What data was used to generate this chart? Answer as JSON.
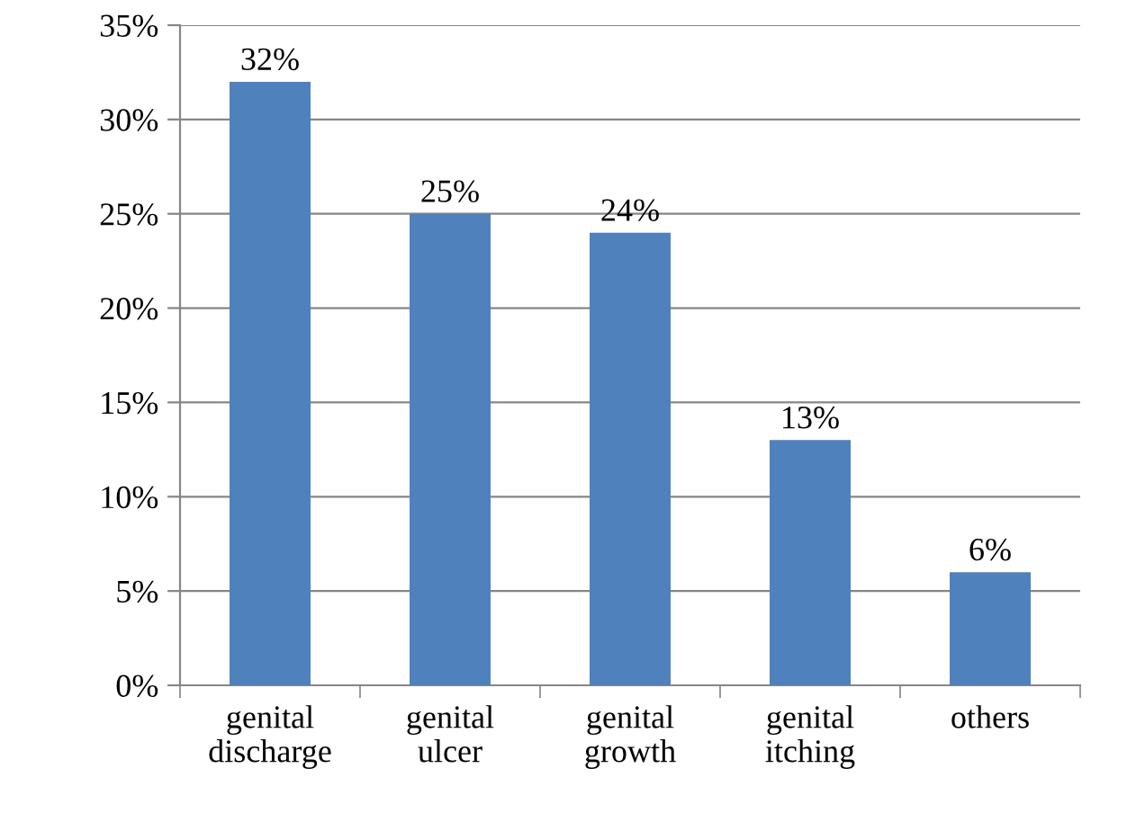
{
  "chart_data": {
    "type": "bar",
    "categories": [
      "genital\ndischarge",
      "genital\nulcer",
      "genital\ngrowth",
      "genital\nitching",
      "others"
    ],
    "values": [
      32,
      25,
      24,
      13,
      6
    ],
    "color": "#4f81bd",
    "value_labels": [
      "32%",
      "25%",
      "24%",
      "13%",
      "6%"
    ],
    "ylim": [
      0,
      35
    ],
    "yticks": [
      {
        "value": 0,
        "label": "0%"
      },
      {
        "value": 5,
        "label": "5%"
      },
      {
        "value": 10,
        "label": "10%"
      },
      {
        "value": 15,
        "label": "15%"
      },
      {
        "value": 20,
        "label": "20%"
      },
      {
        "value": 25,
        "label": "25%"
      },
      {
        "value": 30,
        "label": "30%"
      },
      {
        "value": 35,
        "label": "35%"
      }
    ],
    "grid": "y"
  }
}
